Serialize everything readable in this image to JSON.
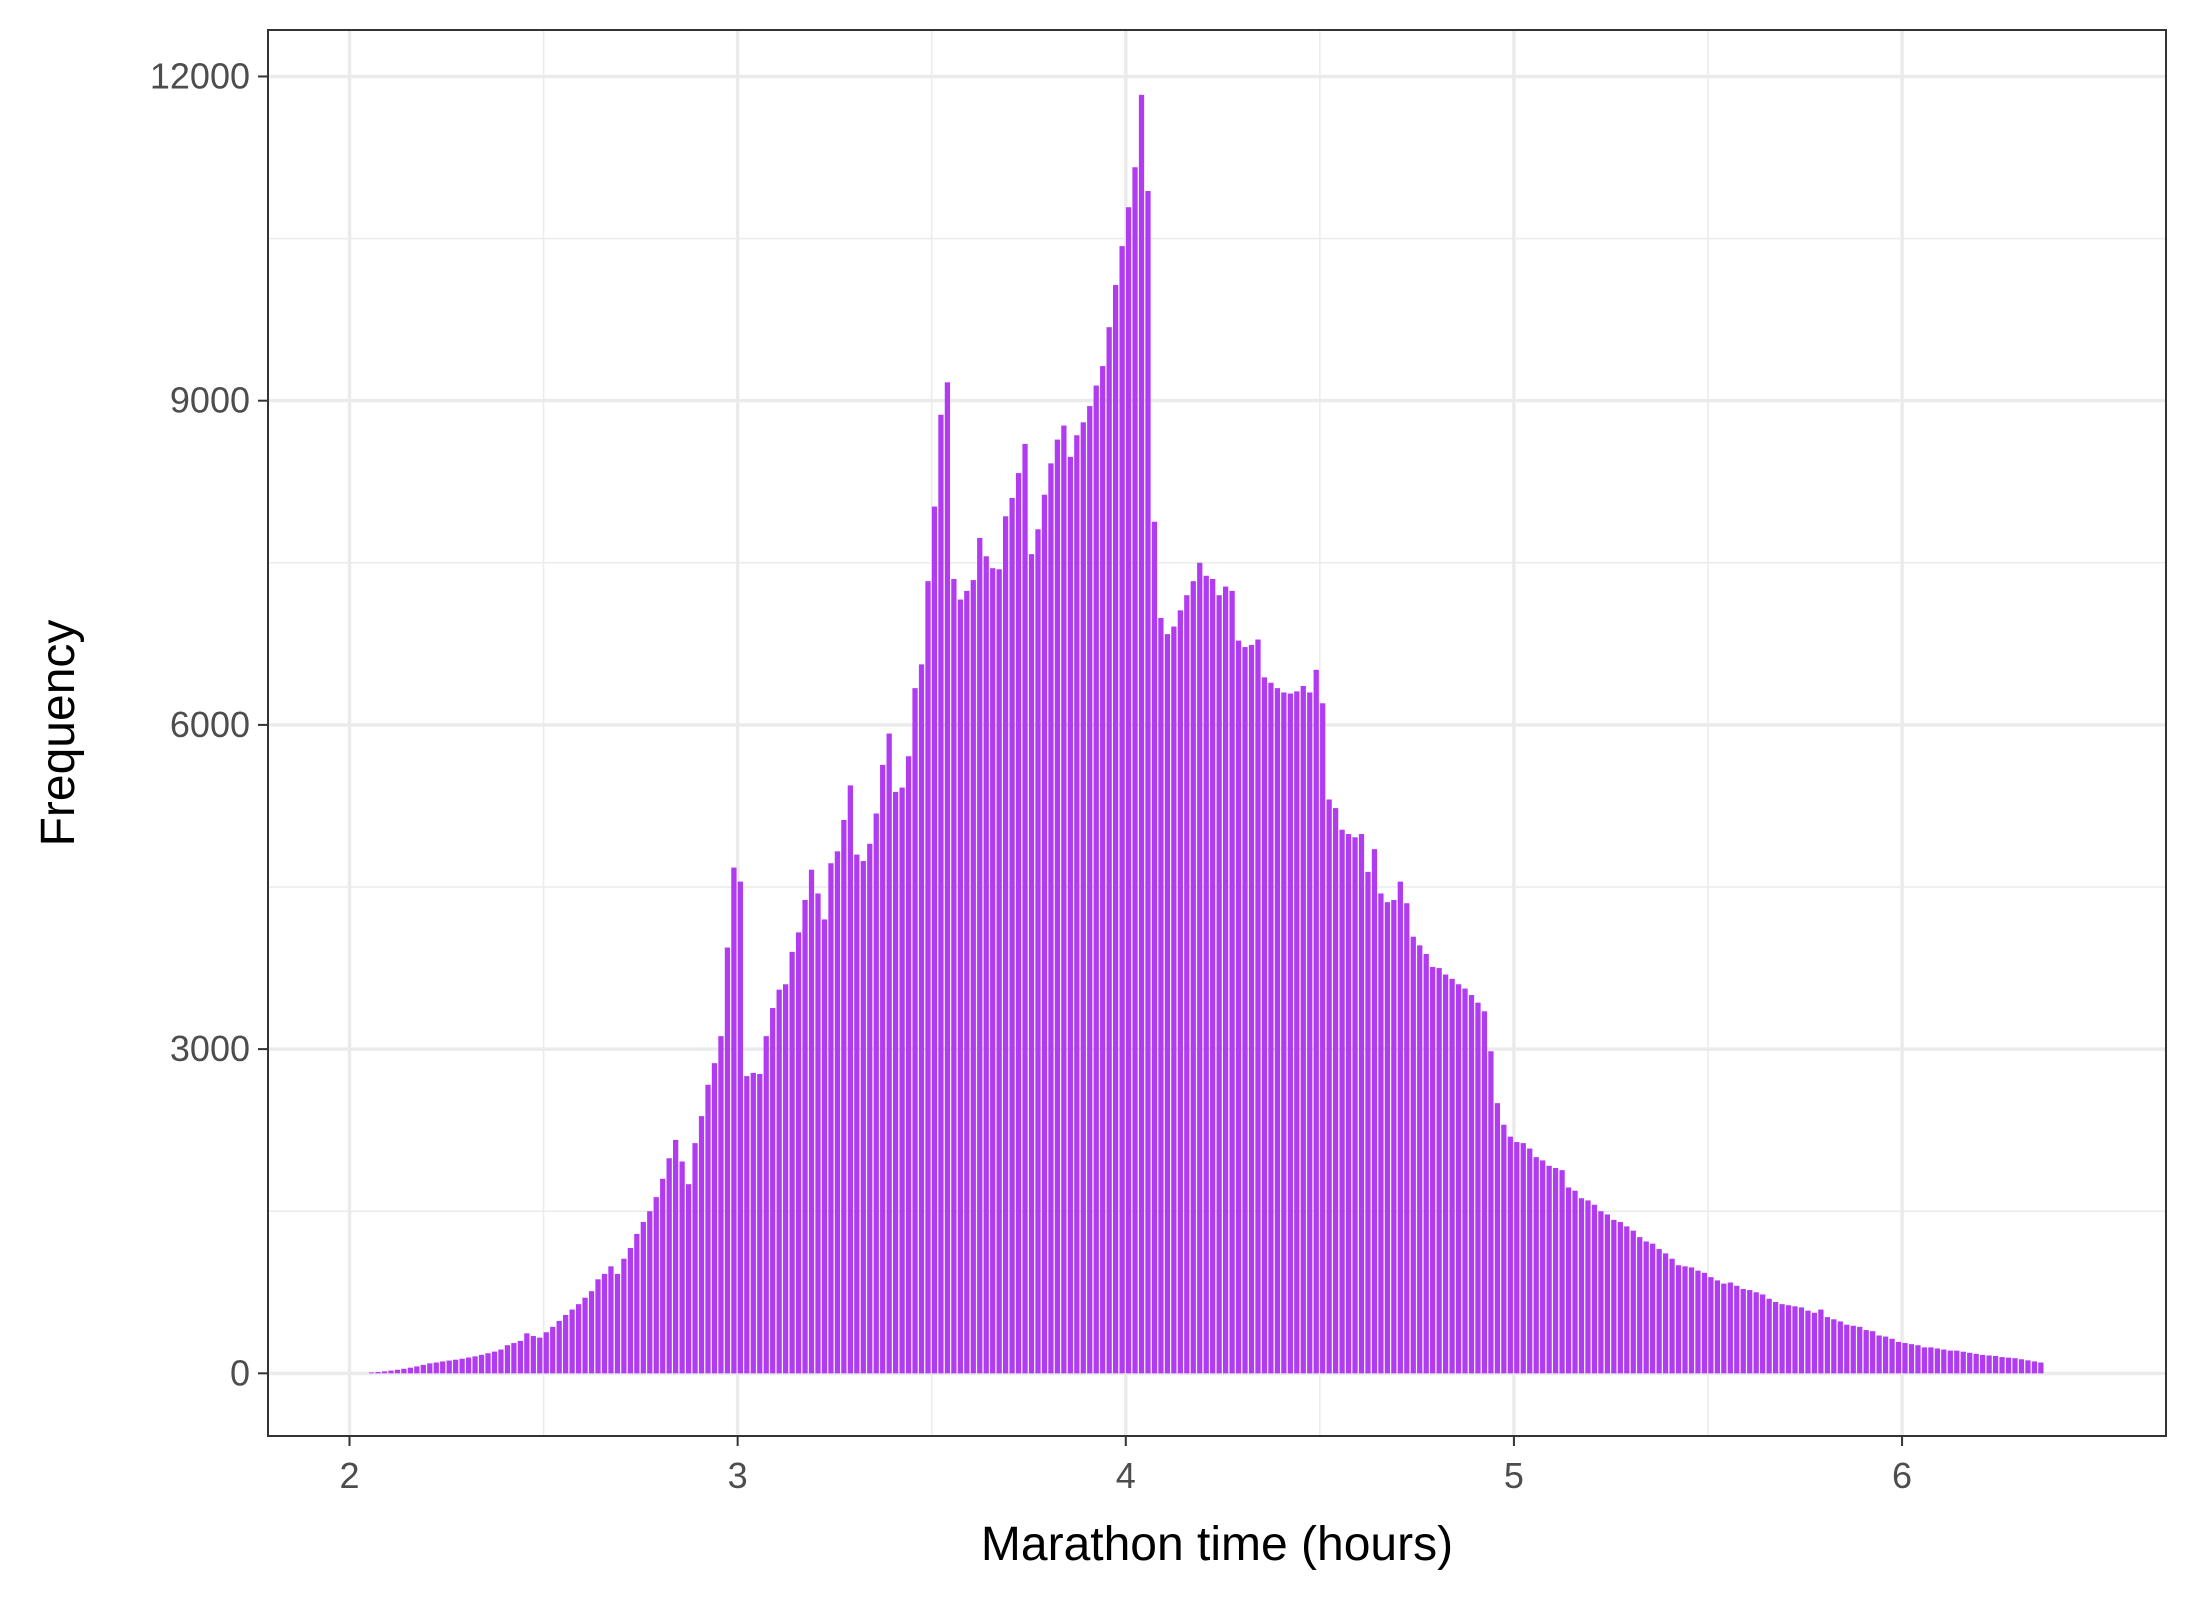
{
  "colors": {
    "bar": "#b13bf0",
    "grid": "#ebebeb",
    "frame": "#333333",
    "tick_text": "#4d4d4d"
  },
  "chart_data": {
    "type": "bar",
    "title": "",
    "xlabel": "Marathon time (hours)",
    "ylabel": "Frequency",
    "xlim": [
      1.79,
      6.68
    ],
    "ylim": [
      -580,
      12430
    ],
    "x_ticks": [
      2,
      3,
      4,
      5,
      6
    ],
    "x_tick_labels": [
      "2",
      "3",
      "4",
      "5",
      "6"
    ],
    "y_ticks": [
      0,
      3000,
      6000,
      9000,
      12000
    ],
    "y_tick_labels": [
      "0",
      "3000",
      "6000",
      "9000",
      "12000"
    ],
    "grid": true,
    "legend": "none",
    "bin_width_hours": 0.01667,
    "x_start_hours": 2.05,
    "values": [
      8,
      12,
      18,
      25,
      33,
      42,
      52,
      64,
      78,
      92,
      100,
      110,
      118,
      126,
      135,
      146,
      157,
      171,
      186,
      201,
      220,
      260,
      280,
      300,
      370,
      345,
      330,
      380,
      430,
      485,
      540,
      590,
      640,
      700,
      760,
      870,
      920,
      990,
      920,
      1060,
      1160,
      1290,
      1400,
      1500,
      1630,
      1800,
      1990,
      2160,
      1960,
      1750,
      2130,
      2380,
      2670,
      2870,
      3120,
      3940,
      4680,
      4550,
      2750,
      2780,
      2770,
      3120,
      3380,
      3550,
      3600,
      3900,
      4080,
      4380,
      4660,
      4440,
      4200,
      4720,
      4830,
      5120,
      5440,
      4800,
      4740,
      4900,
      5180,
      5630,
      5920,
      5380,
      5420,
      5710,
      6340,
      6560,
      7330,
      8020,
      8870,
      9170,
      7350,
      7160,
      7240,
      7340,
      7730,
      7560,
      7450,
      7440,
      7930,
      8100,
      8330,
      8600,
      7580,
      7810,
      8130,
      8420,
      8640,
      8770,
      8480,
      8680,
      8800,
      8950,
      9140,
      9320,
      9680,
      10070,
      10430,
      10790,
      11160,
      11830,
      10940,
      7880,
      6990,
      6840,
      6910,
      7060,
      7200,
      7330,
      7500,
      7380,
      7350,
      7200,
      7280,
      7240,
      6780,
      6720,
      6740,
      6790,
      6440,
      6390,
      6340,
      6300,
      6290,
      6310,
      6360,
      6300,
      6510,
      6200,
      5310,
      5230,
      5030,
      4990,
      4960,
      4990,
      4640,
      4850,
      4440,
      4360,
      4380,
      4550,
      4350,
      4040,
      3960,
      3880,
      3760,
      3750,
      3690,
      3650,
      3600,
      3560,
      3500,
      3430,
      3350,
      2980,
      2500,
      2300,
      2190,
      2140,
      2130,
      2080,
      2000,
      1970,
      1920,
      1900,
      1880,
      1720,
      1690,
      1620,
      1600,
      1560,
      1500,
      1470,
      1420,
      1400,
      1360,
      1320,
      1260,
      1220,
      1200,
      1150,
      1110,
      1060,
      1000,
      990,
      980,
      950,
      930,
      890,
      860,
      830,
      840,
      810,
      780,
      770,
      750,
      730,
      690,
      660,
      640,
      630,
      620,
      610,
      580,
      560,
      590,
      520,
      500,
      480,
      450,
      440,
      430,
      400,
      390,
      350,
      340,
      320,
      290,
      280,
      270,
      260,
      240,
      240,
      230,
      220,
      210,
      210,
      200,
      190,
      180,
      170,
      165,
      160,
      150,
      145,
      140,
      130,
      120,
      110,
      100
    ]
  }
}
